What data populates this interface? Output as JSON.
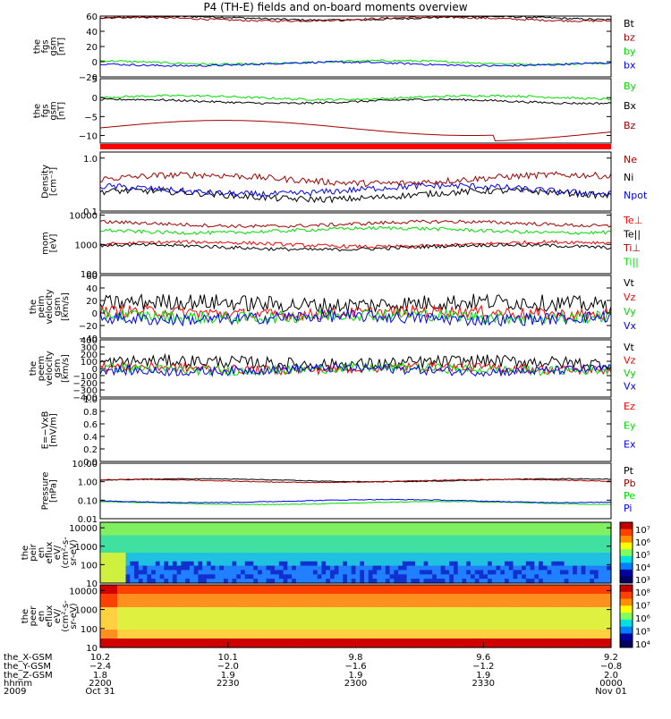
{
  "title": "P4 (TH-E) fields and on-board moments overview",
  "colors": {
    "black": "#000000",
    "red": "#ff0000",
    "darkred": "#a00000",
    "green": "#00dd00",
    "blue": "#0000ff"
  },
  "chart_data": [
    {
      "type": "line",
      "panel_ylabel": [
        "the",
        "fgs",
        "gsm",
        "[nT]"
      ],
      "yticks": [
        "60",
        "40",
        "20",
        "0",
        "−20"
      ],
      "ylim": [
        -20,
        60
      ],
      "series": [
        {
          "name": "Bt",
          "color": "#000000",
          "level": 57
        },
        {
          "name": "bz",
          "color": "#a00000",
          "level": 56
        },
        {
          "name": "by",
          "color": "#00dd00",
          "level": -1
        },
        {
          "name": "bx",
          "color": "#0000ff",
          "level": -3
        }
      ]
    },
    {
      "type": "line",
      "panel_ylabel": [
        "the",
        "fgs",
        "gsm",
        "[nT]"
      ],
      "yticks": [
        "5",
        "0",
        "−5",
        "−10"
      ],
      "ylim": [
        -12,
        5
      ],
      "series": [
        {
          "name": "By",
          "color": "#00dd00",
          "level": 0
        },
        {
          "name": "Bx",
          "color": "#000000",
          "level": -1
        },
        {
          "name": "Bz",
          "color": "#a00000",
          "level": -8
        }
      ]
    },
    {
      "type": "line",
      "panel_ylabel": [
        "Density",
        "[cm⁻³]"
      ],
      "yticks": [
        "1.0",
        "0.1"
      ],
      "ylim": [
        0.1,
        1.3
      ],
      "yscale": "log",
      "series": [
        {
          "name": "Ne",
          "color": "#a00000",
          "level": 0.4
        },
        {
          "name": "Ni",
          "color": "#000000",
          "level": 0.2
        },
        {
          "name": "Npot",
          "color": "#0000ff",
          "level": 0.25
        }
      ]
    },
    {
      "type": "line",
      "panel_ylabel": [
        "mom",
        "[eV]"
      ],
      "yticks": [
        "10000",
        "1000",
        "100"
      ],
      "ylim": [
        100,
        12000
      ],
      "yscale": "log",
      "series": [
        {
          "name": "Te⊥",
          "color": "#ff0000",
          "level": 1000
        },
        {
          "name": "Te||",
          "color": "#000000",
          "level": 800
        },
        {
          "name": "Ti⊥",
          "color": "#a00000",
          "level": 5000
        },
        {
          "name": "Ti||",
          "color": "#00dd00",
          "level": 3000
        }
      ]
    },
    {
      "type": "line",
      "panel_ylabel": [
        "the",
        "peim",
        "velocity",
        "gsm",
        "[km/s]"
      ],
      "yticks": [
        "60",
        "40",
        "20",
        "0",
        "−20",
        "−40"
      ],
      "ylim": [
        -40,
        60
      ],
      "series": [
        {
          "name": "Vt",
          "color": "#000000",
          "level": 15
        },
        {
          "name": "Vz",
          "color": "#ff0000",
          "level": 0
        },
        {
          "name": "Vy",
          "color": "#00dd00",
          "level": -5
        },
        {
          "name": "Vx",
          "color": "#0000ff",
          "level": -8
        }
      ]
    },
    {
      "type": "line",
      "panel_ylabel": [
        "the",
        "peem",
        "velocity",
        "gsm",
        "[km/s]"
      ],
      "yticks": [
        "400",
        "300",
        "200",
        "100",
        "0",
        "−100",
        "−200",
        "−300",
        "−400"
      ],
      "ylim": [
        -400,
        400
      ],
      "series": [
        {
          "name": "Vt",
          "color": "#000000",
          "level": 80
        },
        {
          "name": "Vz",
          "color": "#ff0000",
          "level": 0
        },
        {
          "name": "Vy",
          "color": "#00dd00",
          "level": -10
        },
        {
          "name": "Vx",
          "color": "#0000ff",
          "level": -20
        }
      ]
    },
    {
      "type": "line",
      "panel_ylabel": [
        "E=−VxB",
        "[mV/m]"
      ],
      "yticks": [
        "1.0",
        "0.8",
        "0.6",
        "0.4",
        "0.2",
        "0.0"
      ],
      "ylim": [
        0,
        1
      ],
      "series": [
        {
          "name": "Ez",
          "color": "#ff0000"
        },
        {
          "name": "Ey",
          "color": "#00dd00"
        },
        {
          "name": "Ex",
          "color": "#0000ff"
        }
      ]
    },
    {
      "type": "line",
      "panel_ylabel": [
        "Pressure",
        "[nPa]"
      ],
      "yticks": [
        "10.00",
        "1.00",
        "0.10",
        "0.01"
      ],
      "ylim": [
        0.01,
        10
      ],
      "yscale": "log",
      "series": [
        {
          "name": "Pt",
          "color": "#000000",
          "level": 1.2
        },
        {
          "name": "Pb",
          "color": "#a00000",
          "level": 1.1
        },
        {
          "name": "Pe",
          "color": "#00dd00",
          "level": 0.07
        },
        {
          "name": "Pi",
          "color": "#0000ff",
          "level": 0.09
        }
      ]
    },
    {
      "type": "heatmap",
      "panel_ylabel": [
        "the",
        "peir",
        "en",
        "eflux",
        "eV/",
        "(cm²-s-",
        "sr-eV)"
      ],
      "yticks": [
        "10000",
        "1000",
        "100",
        "10"
      ],
      "ylim": [
        10,
        20000
      ],
      "yscale": "log",
      "colorbar_ticks": [
        "10⁷",
        "10⁶",
        "10⁵",
        "10⁴",
        "10³"
      ]
    },
    {
      "type": "heatmap",
      "panel_ylabel": [
        "the",
        "peer",
        "en",
        "eflux",
        "eV/",
        "(cm²-s-",
        "sr-eV)"
      ],
      "yticks": [
        "10000",
        "1000",
        "100",
        "10"
      ],
      "ylim": [
        10,
        20000
      ],
      "yscale": "log",
      "colorbar_ticks": [
        "10⁸",
        "10⁷",
        "10⁶",
        "10⁵",
        "10⁴"
      ]
    }
  ],
  "xaxis": {
    "row_labels": [
      "the_X-GSM",
      "the_Y-GSM",
      "the_Z-GSM",
      "hhmm",
      "2009"
    ],
    "columns": [
      {
        "values": [
          "10.2",
          "−2.4",
          "1.8",
          "2200",
          "Oct 31"
        ]
      },
      {
        "values": [
          "10.1",
          "−2.0",
          "1.9",
          "2230",
          ""
        ]
      },
      {
        "values": [
          "9.8",
          "−1.6",
          "1.9",
          "2300",
          ""
        ]
      },
      {
        "values": [
          "9.6",
          "−1.2",
          "1.9",
          "2330",
          ""
        ]
      },
      {
        "values": [
          "9.2",
          "−0.8",
          "2.0",
          "0000",
          "Nov 01"
        ]
      }
    ]
  }
}
